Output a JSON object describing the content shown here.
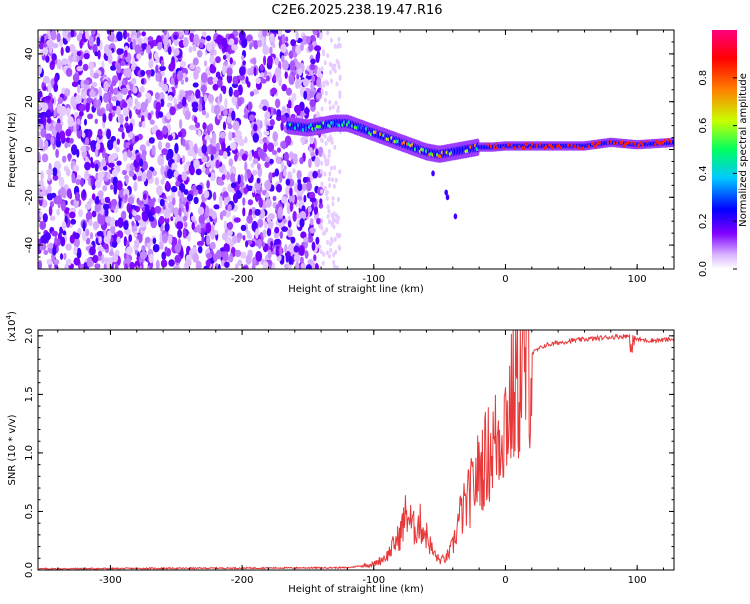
{
  "title": "C2E6.2025.238.19.47.R16",
  "chart_data": [
    {
      "type": "heatmap",
      "xlabel": "Height of straight line (km)",
      "ylabel": "Frequency (Hz)",
      "xlim": [
        -355,
        128
      ],
      "ylim": [
        -50,
        50
      ],
      "xticks": [
        "-300",
        "-200",
        "-100",
        "0",
        "100"
      ],
      "yticks": [
        "-40",
        "-20",
        "0",
        "20",
        "40"
      ],
      "colorbar": {
        "label": "Normalized spectral amplitude",
        "ticks": [
          "0.0",
          "0.2",
          "0.4",
          "0.6",
          "0.8"
        ],
        "range": [
          0,
          1
        ],
        "colormap": [
          "#ffffff",
          "#7e00ff",
          "#0000ff",
          "#00c8ff",
          "#00ff60",
          "#c8ff00",
          "#ff8000",
          "#ff0000",
          "#ff0080"
        ]
      },
      "noise_region_x": [
        -355,
        -140
      ],
      "ridge": {
        "x": [
          -165,
          -150,
          -130,
          -120,
          -110,
          -100,
          -90,
          -80,
          -70,
          -60,
          -50,
          -40,
          -30,
          -20,
          -10,
          0,
          20,
          40,
          60,
          80,
          100,
          128
        ],
        "y": [
          10,
          9,
          11,
          11,
          9,
          7,
          5,
          3,
          1,
          -1,
          -2,
          -1,
          0,
          1,
          1,
          1.5,
          1.5,
          1.5,
          1.5,
          3,
          2,
          3
        ]
      }
    },
    {
      "type": "line",
      "xlabel": "Height of straight line (km)",
      "ylabel": "SNR (10 * v/v)",
      "multiplier_label": "(x10",
      "multiplier_exp": "4",
      "xlim": [
        -355,
        128
      ],
      "ylim": [
        0,
        2.05
      ],
      "xticks": [
        "-300",
        "-200",
        "-100",
        "0",
        "100"
      ],
      "yticks": [
        "0.0",
        "0.5",
        "1.0",
        "1.5",
        "2.0"
      ],
      "series_color": "#e8393a",
      "envelope": {
        "x": [
          -355,
          -120,
          -100,
          -90,
          -80,
          -75,
          -70,
          -65,
          -60,
          -55,
          -50,
          -45,
          -40,
          -35,
          -30,
          -25,
          -20,
          -15,
          -10,
          -5,
          0,
          10,
          20,
          30,
          50,
          80,
          95,
          100,
          110,
          128
        ],
        "y": [
          0.01,
          0.02,
          0.05,
          0.12,
          0.3,
          0.5,
          0.35,
          0.4,
          0.3,
          0.15,
          0.08,
          0.1,
          0.2,
          0.45,
          0.55,
          0.7,
          0.85,
          0.95,
          1.05,
          1.15,
          1.3,
          1.6,
          1.85,
          1.92,
          1.96,
          1.99,
          2.0,
          1.97,
          1.96,
          1.97
        ]
      }
    }
  ]
}
